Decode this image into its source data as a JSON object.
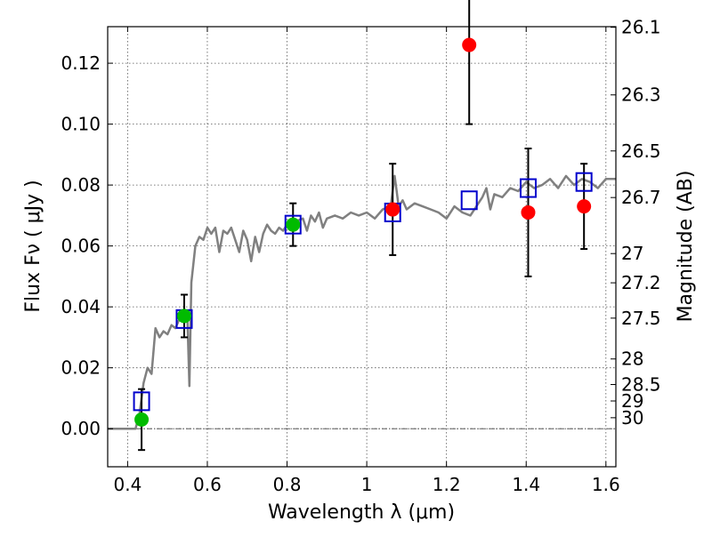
{
  "chart_data": {
    "type": "scatter",
    "title": "",
    "xlabel": "Wavelength  λ (μm)",
    "ylabel": "Flux  Fν  ( μJy )",
    "y2label": "Magnitude (AB)",
    "xlim": [
      0.35,
      1.625
    ],
    "ylim": [
      -0.0125,
      0.132
    ],
    "grid": true,
    "x_ticks": [
      0.4,
      0.6,
      0.8,
      1.0,
      1.2,
      1.4,
      1.6
    ],
    "x_tick_labels": [
      "0.4",
      "0.6",
      "0.8",
      "1",
      "1.2",
      "1.4",
      "1.6"
    ],
    "y_ticks": [
      0.0,
      0.02,
      0.04,
      0.06,
      0.08,
      0.1,
      0.12
    ],
    "y_tick_labels": [
      "0.00",
      "0.02",
      "0.04",
      "0.06",
      "0.08",
      "0.10",
      "0.12"
    ],
    "y2_ticks": [
      {
        "flux": 0.1318,
        "label": "26.1"
      },
      {
        "flux": 0.1096,
        "label": "26.3"
      },
      {
        "flux": 0.0912,
        "label": "26.5"
      },
      {
        "flux": 0.0759,
        "label": "26.7"
      },
      {
        "flux": 0.0575,
        "label": "27"
      },
      {
        "flux": 0.0479,
        "label": "27.2"
      },
      {
        "flux": 0.0363,
        "label": "27.5"
      },
      {
        "flux": 0.0229,
        "label": "28"
      },
      {
        "flux": 0.0145,
        "label": "28.5"
      },
      {
        "flux": 0.0091,
        "label": "29"
      },
      {
        "flux": 0.0036,
        "label": "30"
      }
    ],
    "zero_line": 0.0,
    "colors": {
      "model": "#808080",
      "green": "#00bb00",
      "red": "#ff0000",
      "box": "#0000cc",
      "grid": "#555555"
    },
    "series": [
      {
        "marker": "line",
        "color": "#808080",
        "x": [
          0.35,
          0.42,
          0.43,
          0.44,
          0.45,
          0.46,
          0.47,
          0.48,
          0.49,
          0.5,
          0.51,
          0.52,
          0.53,
          0.54,
          0.55,
          0.555,
          0.56,
          0.57,
          0.58,
          0.59,
          0.6,
          0.61,
          0.62,
          0.63,
          0.64,
          0.65,
          0.66,
          0.67,
          0.68,
          0.69,
          0.7,
          0.71,
          0.72,
          0.73,
          0.74,
          0.75,
          0.76,
          0.77,
          0.78,
          0.79,
          0.8,
          0.82,
          0.84,
          0.85,
          0.86,
          0.87,
          0.88,
          0.89,
          0.9,
          0.92,
          0.94,
          0.96,
          0.98,
          1.0,
          1.02,
          1.04,
          1.06,
          1.07,
          1.075,
          1.08,
          1.09,
          1.1,
          1.12,
          1.14,
          1.16,
          1.18,
          1.2,
          1.22,
          1.24,
          1.26,
          1.28,
          1.29,
          1.3,
          1.31,
          1.32,
          1.34,
          1.36,
          1.38,
          1.4,
          1.42,
          1.44,
          1.46,
          1.48,
          1.5,
          1.52,
          1.54,
          1.56,
          1.58,
          1.6,
          1.625
        ],
        "y": [
          0.0,
          0.0,
          0.005,
          0.015,
          0.02,
          0.018,
          0.033,
          0.03,
          0.032,
          0.031,
          0.034,
          0.033,
          0.036,
          0.039,
          0.036,
          0.014,
          0.048,
          0.06,
          0.063,
          0.062,
          0.066,
          0.064,
          0.066,
          0.058,
          0.065,
          0.064,
          0.066,
          0.062,
          0.058,
          0.065,
          0.062,
          0.055,
          0.063,
          0.058,
          0.064,
          0.067,
          0.065,
          0.064,
          0.066,
          0.065,
          0.067,
          0.068,
          0.069,
          0.065,
          0.07,
          0.068,
          0.071,
          0.066,
          0.069,
          0.07,
          0.069,
          0.071,
          0.07,
          0.071,
          0.069,
          0.072,
          0.073,
          0.083,
          0.078,
          0.073,
          0.075,
          0.072,
          0.074,
          0.073,
          0.072,
          0.071,
          0.069,
          0.073,
          0.071,
          0.07,
          0.074,
          0.076,
          0.079,
          0.072,
          0.077,
          0.076,
          0.079,
          0.078,
          0.081,
          0.079,
          0.08,
          0.082,
          0.079,
          0.083,
          0.08,
          0.082,
          0.081,
          0.079,
          0.082,
          0.082
        ]
      },
      {
        "marker": "circle",
        "color": "#00bb00",
        "x": [
          0.435,
          0.542,
          0.815
        ],
        "y": [
          0.003,
          0.037,
          0.067
        ],
        "err": [
          0.01,
          0.007,
          0.007
        ]
      },
      {
        "marker": "circle",
        "color": "#ff0000",
        "x": [
          1.065,
          1.257,
          1.405,
          1.545
        ],
        "y": [
          0.072,
          0.126,
          0.071,
          0.073
        ],
        "err": [
          0.015,
          0.026,
          0.021,
          0.014
        ]
      },
      {
        "marker": "square",
        "color": "#0000cc",
        "x": [
          0.435,
          0.542,
          0.815,
          1.065,
          1.257,
          1.405,
          1.545
        ],
        "y": [
          0.009,
          0.036,
          0.067,
          0.071,
          0.075,
          0.079,
          0.081
        ]
      }
    ]
  }
}
